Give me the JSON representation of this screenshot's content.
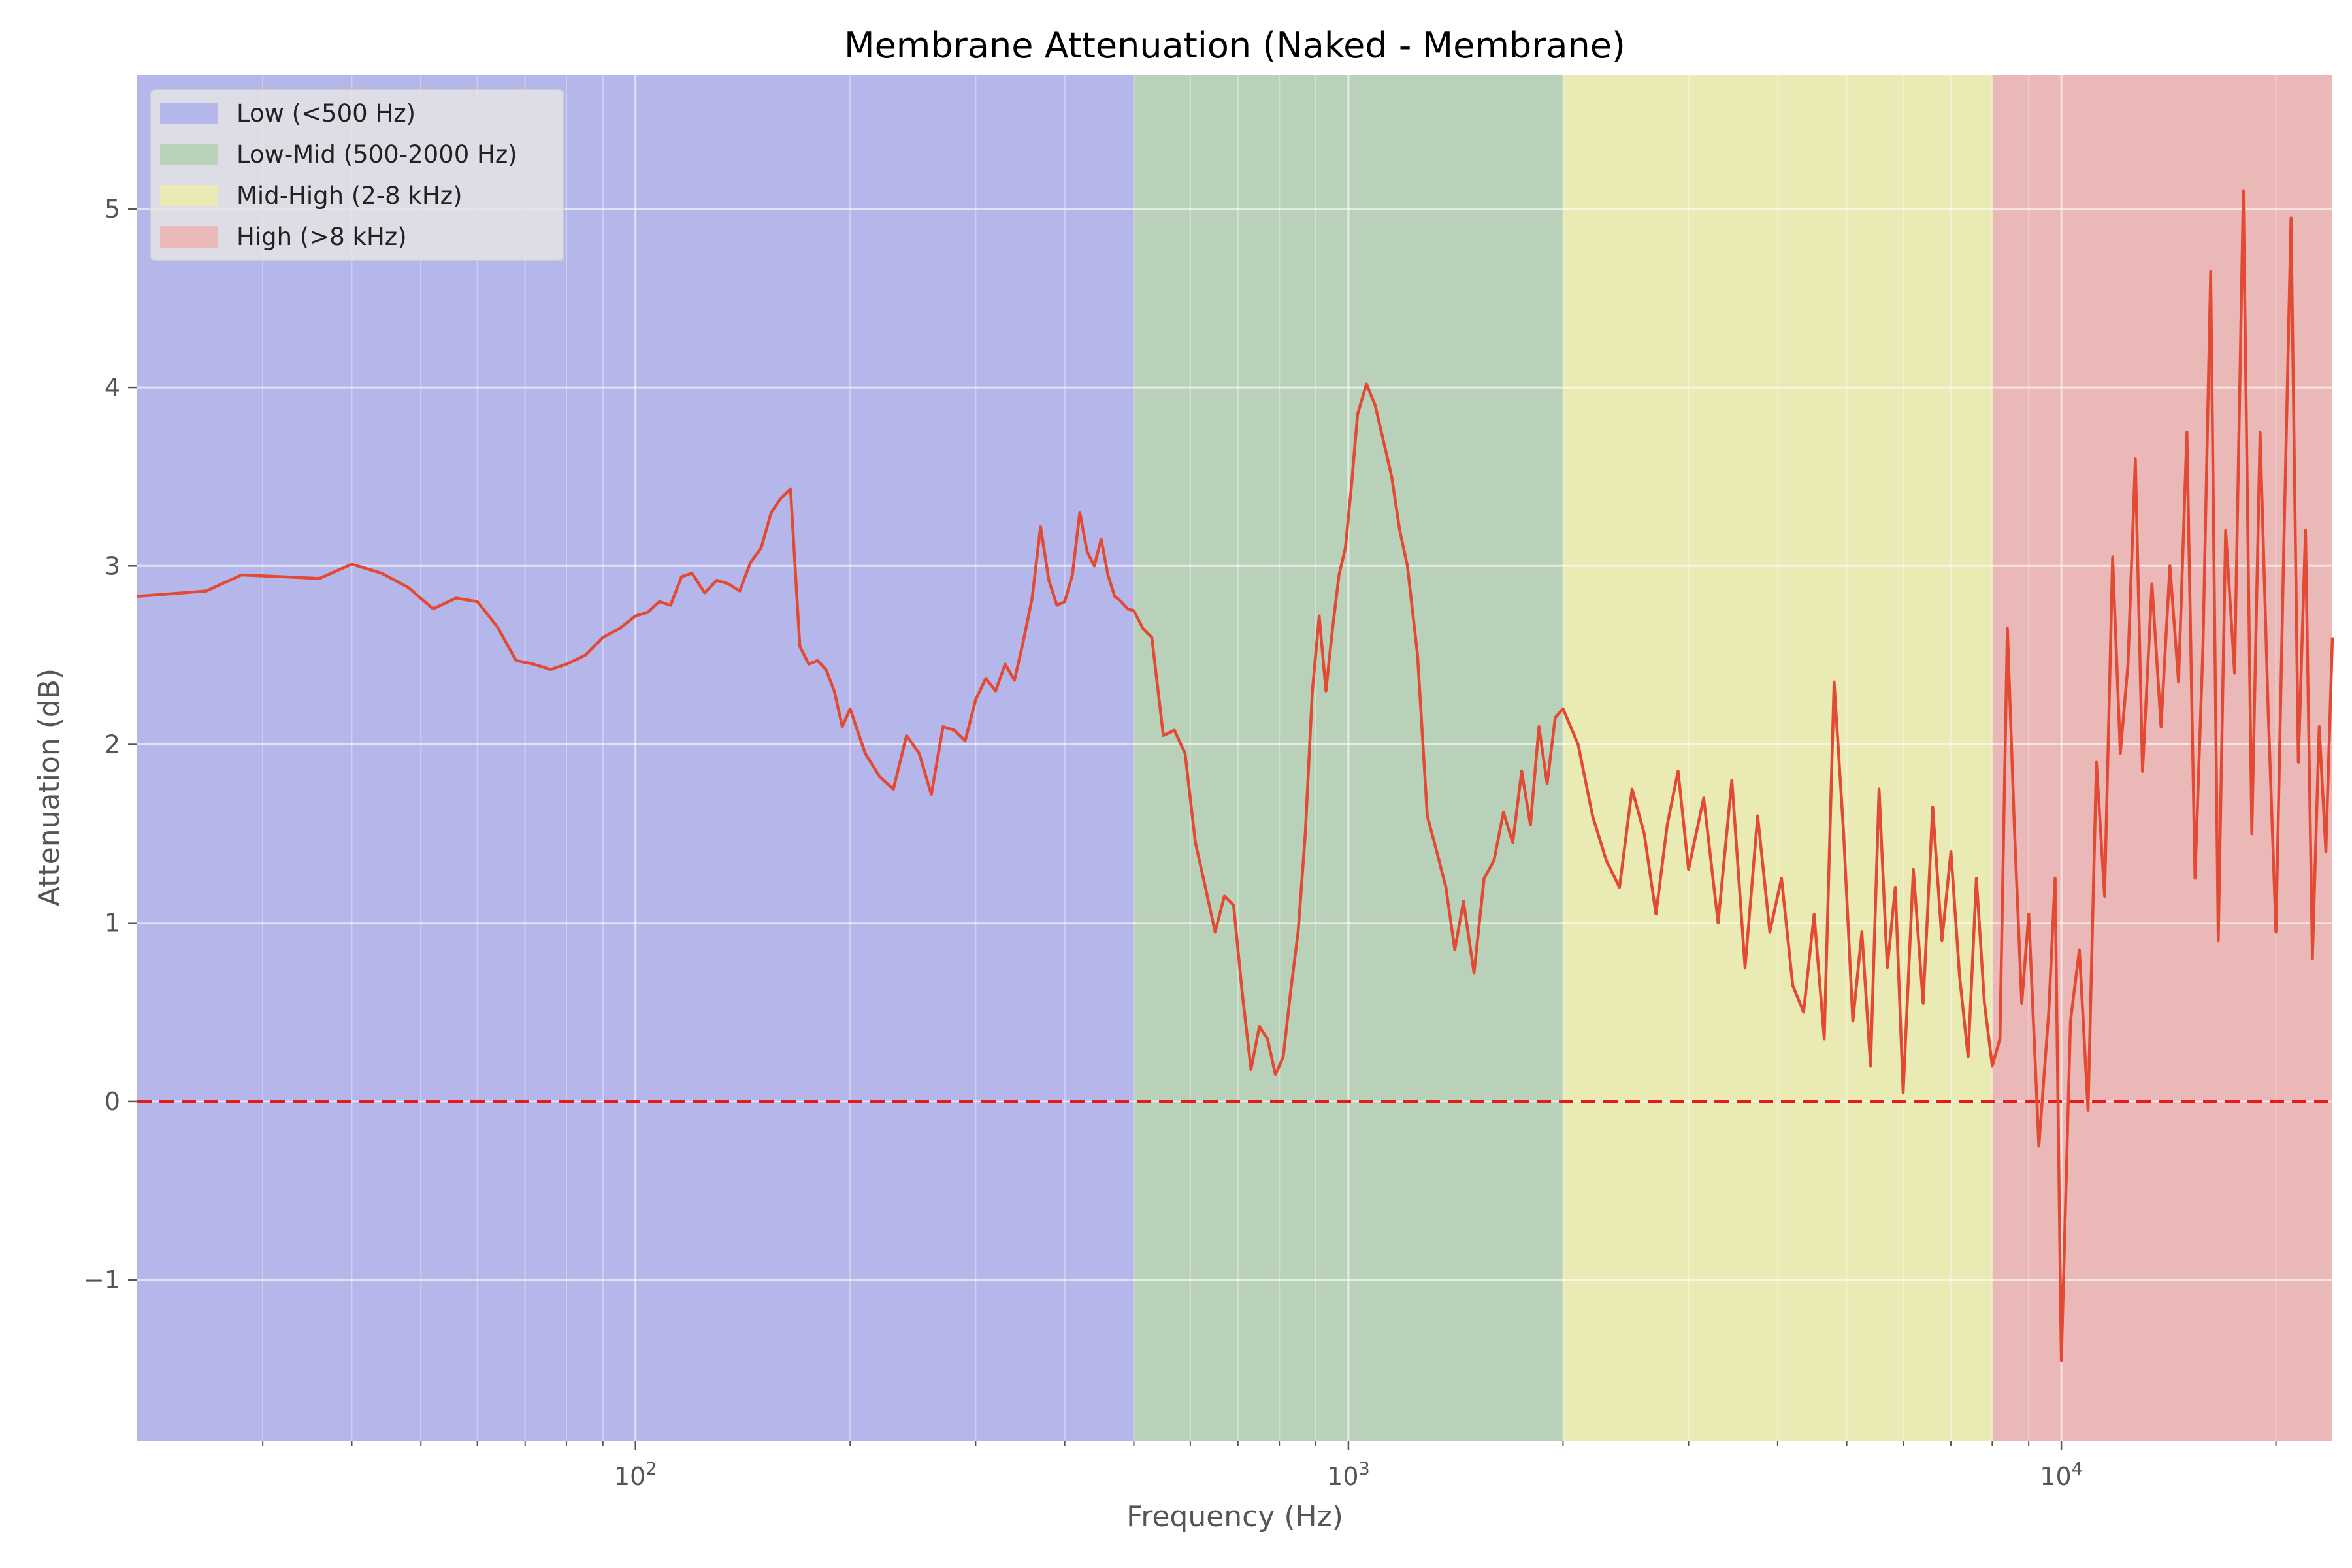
{
  "chart_data": {
    "type": "line",
    "title": "Membrane Attenuation (Naked - Membrane)",
    "xlabel": "Frequency (Hz)",
    "ylabel": "Attenuation (dB)",
    "xscale": "log",
    "xlim": [
      20,
      24000
    ],
    "ylim": [
      -1.9,
      5.75
    ],
    "x_ticks": [
      {
        "value": 100,
        "base": "10",
        "exp": "2"
      },
      {
        "value": 1000,
        "base": "10",
        "exp": "3"
      },
      {
        "value": 10000,
        "base": "10",
        "exp": "4"
      }
    ],
    "y_ticks": [
      {
        "value": -1,
        "label": "−1"
      },
      {
        "value": 0,
        "label": "0"
      },
      {
        "value": 1,
        "label": "1"
      },
      {
        "value": 2,
        "label": "2"
      },
      {
        "value": 3,
        "label": "3"
      },
      {
        "value": 4,
        "label": "4"
      },
      {
        "value": 5,
        "label": "5"
      }
    ],
    "grid": true,
    "legend_position": "top-left",
    "bands": [
      {
        "label": "Low (<500 Hz)",
        "from": 20,
        "to": 500,
        "color": "#b5b6e9"
      },
      {
        "label": "Low-Mid (500-2000 Hz)",
        "from": 500,
        "to": 2000,
        "color": "#b9d1b9"
      },
      {
        "label": "Mid-High (2-8 kHz)",
        "from": 2000,
        "to": 8000,
        "color": "#eaeab5"
      },
      {
        "label": "High (>8 kHz)",
        "from": 8000,
        "to": 24000,
        "color": "#eab8b7"
      }
    ],
    "reference_line": {
      "y": 0,
      "color": "#e8191b",
      "style": "dashed"
    },
    "series": [
      {
        "color": "#e24a33",
        "x": [
          20,
          25,
          28,
          32,
          36,
          40,
          44,
          48,
          52,
          56,
          60,
          64,
          68,
          72,
          76,
          80,
          85,
          90,
          95,
          100,
          104,
          108,
          112,
          116,
          120,
          125,
          130,
          135,
          140,
          145,
          150,
          155,
          160,
          165,
          170,
          175,
          180,
          185,
          190,
          195,
          200,
          210,
          220,
          230,
          240,
          250,
          260,
          270,
          280,
          290,
          300,
          310,
          320,
          330,
          340,
          350,
          360,
          370,
          380,
          390,
          400,
          410,
          420,
          430,
          440,
          450,
          460,
          470,
          480,
          490,
          500,
          515,
          530,
          550,
          570,
          590,
          610,
          630,
          650,
          670,
          690,
          710,
          730,
          750,
          770,
          790,
          810,
          830,
          850,
          870,
          890,
          910,
          930,
          950,
          970,
          990,
          1010,
          1030,
          1060,
          1090,
          1120,
          1150,
          1180,
          1210,
          1250,
          1290,
          1330,
          1370,
          1410,
          1450,
          1500,
          1550,
          1600,
          1650,
          1700,
          1750,
          1800,
          1850,
          1900,
          1950,
          2000,
          2100,
          2200,
          2300,
          2400,
          2500,
          2600,
          2700,
          2800,
          2900,
          3000,
          3150,
          3300,
          3450,
          3600,
          3750,
          3900,
          4050,
          4200,
          4350,
          4500,
          4650,
          4800,
          4950,
          5100,
          5250,
          5400,
          5550,
          5700,
          5850,
          6000,
          6200,
          6400,
          6600,
          6800,
          7000,
          7200,
          7400,
          7600,
          7800,
          8000,
          8200,
          8400,
          8600,
          8800,
          9000,
          9300,
          9600,
          9800,
          10000,
          10300,
          10600,
          10900,
          11200,
          11500,
          11800,
          12100,
          12400,
          12700,
          13000,
          13400,
          13800,
          14200,
          14600,
          15000,
          15400,
          15800,
          16200,
          16600,
          17000,
          17500,
          18000,
          18500,
          19000,
          19500,
          20000,
          20500,
          21000,
          21500,
          22000,
          22500,
          23000,
          23500,
          24000
        ],
        "y": [
          2.83,
          2.86,
          2.95,
          2.94,
          2.93,
          3.01,
          2.96,
          2.88,
          2.76,
          2.82,
          2.8,
          2.66,
          2.47,
          2.45,
          2.42,
          2.45,
          2.5,
          2.6,
          2.65,
          2.72,
          2.74,
          2.8,
          2.78,
          2.94,
          2.96,
          2.85,
          2.92,
          2.9,
          2.86,
          3.02,
          3.1,
          3.3,
          3.38,
          3.43,
          2.55,
          2.45,
          2.47,
          2.42,
          2.3,
          2.1,
          2.2,
          1.95,
          1.82,
          1.75,
          2.05,
          1.95,
          1.72,
          2.1,
          2.08,
          2.02,
          2.25,
          2.37,
          2.3,
          2.45,
          2.36,
          2.58,
          2.82,
          3.22,
          2.92,
          2.78,
          2.8,
          2.95,
          3.3,
          3.08,
          3.0,
          3.15,
          2.95,
          2.83,
          2.8,
          2.76,
          2.75,
          2.65,
          2.6,
          2.05,
          2.08,
          1.95,
          1.45,
          1.2,
          0.95,
          1.15,
          1.1,
          0.6,
          0.18,
          0.42,
          0.35,
          0.15,
          0.25,
          0.62,
          0.95,
          1.5,
          2.3,
          2.72,
          2.3,
          2.65,
          2.95,
          3.1,
          3.45,
          3.85,
          4.02,
          3.9,
          3.7,
          3.5,
          3.2,
          3.0,
          2.5,
          1.6,
          1.4,
          1.2,
          0.85,
          1.12,
          0.72,
          1.25,
          1.35,
          1.62,
          1.45,
          1.85,
          1.55,
          2.1,
          1.78,
          2.15,
          2.2,
          2.0,
          1.6,
          1.35,
          1.2,
          1.75,
          1.5,
          1.05,
          1.55,
          1.85,
          1.3,
          1.7,
          1.0,
          1.8,
          0.75,
          1.6,
          0.95,
          1.25,
          0.65,
          0.5,
          1.05,
          0.35,
          2.35,
          1.5,
          0.45,
          0.95,
          0.2,
          1.75,
          0.75,
          1.2,
          0.05,
          1.3,
          0.55,
          1.65,
          0.9,
          1.4,
          0.7,
          0.25,
          1.25,
          0.55,
          0.2,
          0.35,
          2.65,
          1.5,
          0.55,
          1.05,
          -0.25,
          0.5,
          1.25,
          -1.45,
          0.45,
          0.85,
          -0.05,
          1.9,
          1.15,
          3.05,
          1.95,
          2.45,
          3.6,
          1.85,
          2.9,
          2.1,
          3.0,
          2.35,
          3.75,
          1.25,
          2.55,
          4.65,
          0.9,
          3.2,
          2.4,
          5.1,
          1.5,
          3.75,
          2.2,
          0.95,
          3.05,
          4.95,
          1.9,
          3.2,
          0.8,
          2.1,
          1.4,
          2.6
        ]
      }
    ]
  }
}
